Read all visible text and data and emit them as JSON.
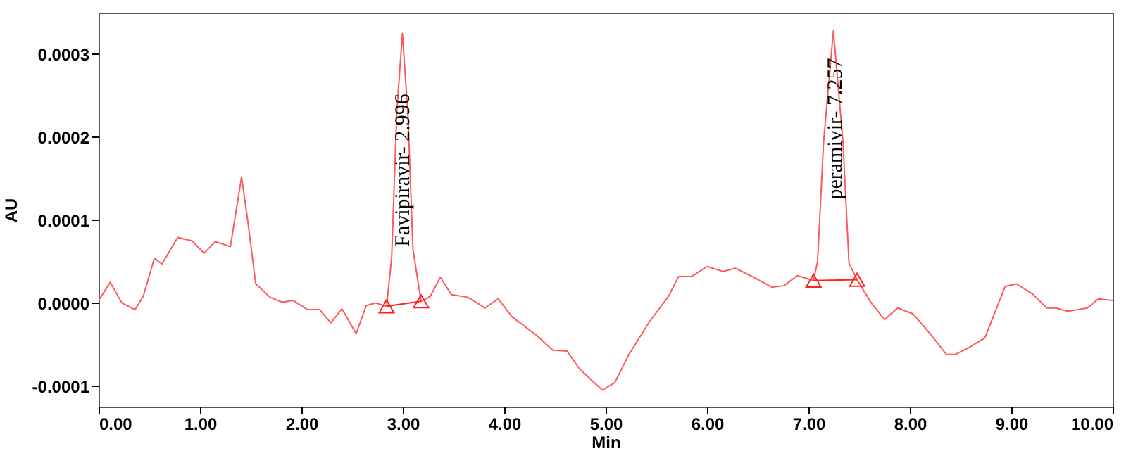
{
  "chart_data": {
    "type": "line",
    "xlabel": "Min",
    "ylabel": "AU",
    "xlim": [
      0,
      10
    ],
    "ylim": [
      -0.000125,
      0.00035
    ],
    "xticks": [
      {
        "value": 0,
        "label": "0.00"
      },
      {
        "value": 1,
        "label": "1.00"
      },
      {
        "value": 2,
        "label": "2.00"
      },
      {
        "value": 3,
        "label": "3.00"
      },
      {
        "value": 4,
        "label": "4.00"
      },
      {
        "value": 5,
        "label": "5.00"
      },
      {
        "value": 6,
        "label": "6.00"
      },
      {
        "value": 7,
        "label": "7.00"
      },
      {
        "value": 8,
        "label": "8.00"
      },
      {
        "value": 9,
        "label": "9.00"
      },
      {
        "value": 10,
        "label": "10.00"
      }
    ],
    "yticks": [
      {
        "value": -0.0001,
        "label": "-0.0001"
      },
      {
        "value": 0,
        "label": "0.0000"
      },
      {
        "value": 0.0001,
        "label": "0.0001"
      },
      {
        "value": 0.0002,
        "label": "0.0002"
      },
      {
        "value": 0.0003,
        "label": "0.0003"
      }
    ],
    "series": [
      {
        "color": "#ff5a5a",
        "marker": "none",
        "x": [
          0,
          0.115,
          0.23,
          0.36,
          0.44,
          0.55,
          0.625,
          0.78,
          0.92,
          1.04,
          1.15,
          1.3,
          1.41,
          1.47,
          1.55,
          1.69,
          1.81,
          1.92,
          2.06,
          2.18,
          2.29,
          2.4,
          2.54,
          2.64,
          2.73,
          2.84,
          2.89,
          2.94,
          2.996,
          3.05,
          3.1,
          3.18,
          3.27,
          3.37,
          3.48,
          3.64,
          3.81,
          3.94,
          4.08,
          4.31,
          4.48,
          4.62,
          4.74,
          4.86,
          4.97,
          5.09,
          5.23,
          5.43,
          5.62,
          5.72,
          5.85,
          6,
          6.16,
          6.28,
          6.46,
          6.64,
          6.76,
          6.89,
          7.05,
          7.09,
          7.15,
          7.246,
          7.34,
          7.4,
          7.48,
          7.62,
          7.75,
          7.88,
          8.03,
          8.2,
          8.36,
          8.45,
          8.58,
          8.74,
          8.94,
          9.05,
          9.21,
          9.35,
          9.44,
          9.56,
          9.75,
          9.86,
          10
        ],
        "values": [
          3e-06,
          2.5e-05,
          0,
          -8e-06,
          8e-06,
          5.4e-05,
          4.7e-05,
          7.9e-05,
          7.5e-05,
          6e-05,
          7.4e-05,
          6.8e-05,
          0.000152,
          0.0001,
          2.3e-05,
          7e-06,
          1e-06,
          3e-06,
          -8e-06,
          -8e-06,
          -2.4e-05,
          -7e-06,
          -3.7e-05,
          -3e-06,
          0,
          -4e-06,
          5.4e-05,
          0.000229,
          0.000325,
          0.000229,
          6.5e-05,
          2e-06,
          8e-06,
          3.1e-05,
          1e-05,
          7e-06,
          -6e-06,
          5e-06,
          -1.7e-05,
          -3.8e-05,
          -5.7e-05,
          -5.8e-05,
          -7.9e-05,
          -9.3e-05,
          -0.000105,
          -9.6e-05,
          -6.2e-05,
          -2.3e-05,
          8e-06,
          3.2e-05,
          3.2e-05,
          4.4e-05,
          3.8e-05,
          4.2e-05,
          3.1e-05,
          1.9e-05,
          2.1e-05,
          3.3e-05,
          2.7e-05,
          5e-05,
          0.000195,
          0.000328,
          0.000195,
          4.8e-05,
          2.8e-05,
          0,
          -2e-05,
          -6e-06,
          -1.3e-05,
          -3.7e-05,
          -6.2e-05,
          -6.2e-05,
          -5.4e-05,
          -4.2e-05,
          2e-05,
          2.3e-05,
          1.1e-05,
          -6e-06,
          -6e-06,
          -1e-05,
          -6e-06,
          5e-06,
          3e-06
        ]
      },
      {
        "color": "#ff2020",
        "marker": "triangle",
        "x": [
          2.84,
          3.18
        ],
        "values": [
          -4e-06,
          2e-06
        ]
      },
      {
        "color": "#ff2020",
        "marker": "triangle",
        "x": [
          7.05,
          7.48
        ],
        "values": [
          2.7e-05,
          2.8e-05
        ]
      }
    ],
    "annotations": [
      {
        "text": "Favipiravir- 2.996",
        "x": 2.996,
        "y": 0.00016
      },
      {
        "text": "peramivir- 7.257",
        "x": 7.257,
        "y": 0.00021
      }
    ]
  }
}
